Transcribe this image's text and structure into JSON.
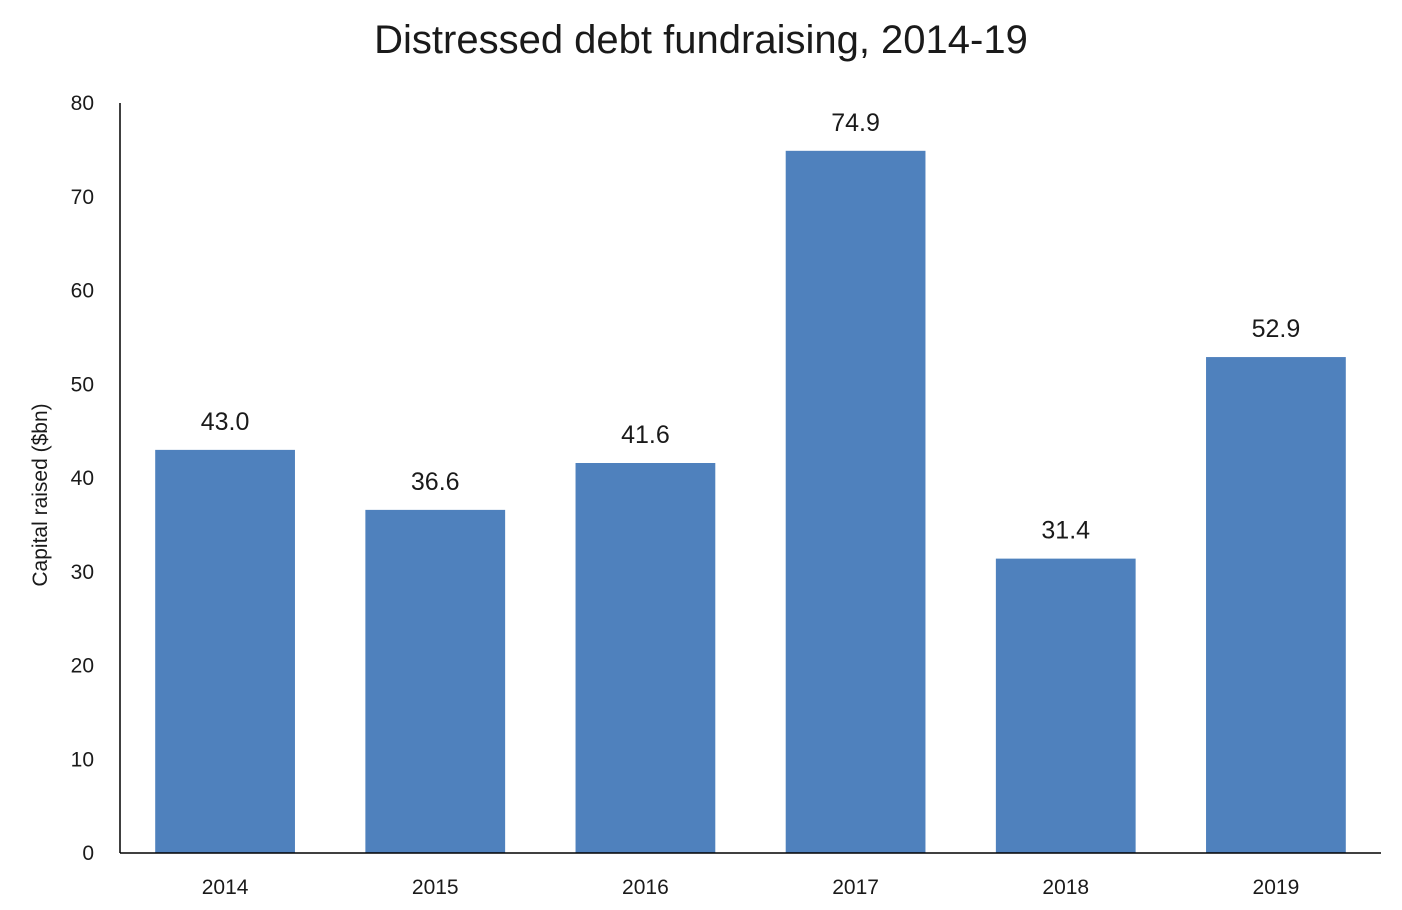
{
  "chart_data": {
    "type": "bar",
    "title": "Distressed debt fundraising, 2014-19",
    "xlabel": "",
    "ylabel": "Capital raised ($bn)",
    "categories": [
      "2014",
      "2015",
      "2016",
      "2017",
      "2018",
      "2019"
    ],
    "values": [
      43.0,
      36.6,
      41.6,
      74.9,
      31.4,
      52.9
    ],
    "data_labels": [
      "43.0",
      "36.6",
      "41.6",
      "74.9",
      "31.4",
      "52.9"
    ],
    "ylim": [
      0,
      80
    ],
    "yticks": [
      0,
      10,
      20,
      30,
      40,
      50,
      60,
      70,
      80
    ],
    "grid": false,
    "legend": "none",
    "bar_color": "#4f81bd",
    "axis_color": "#000000"
  }
}
